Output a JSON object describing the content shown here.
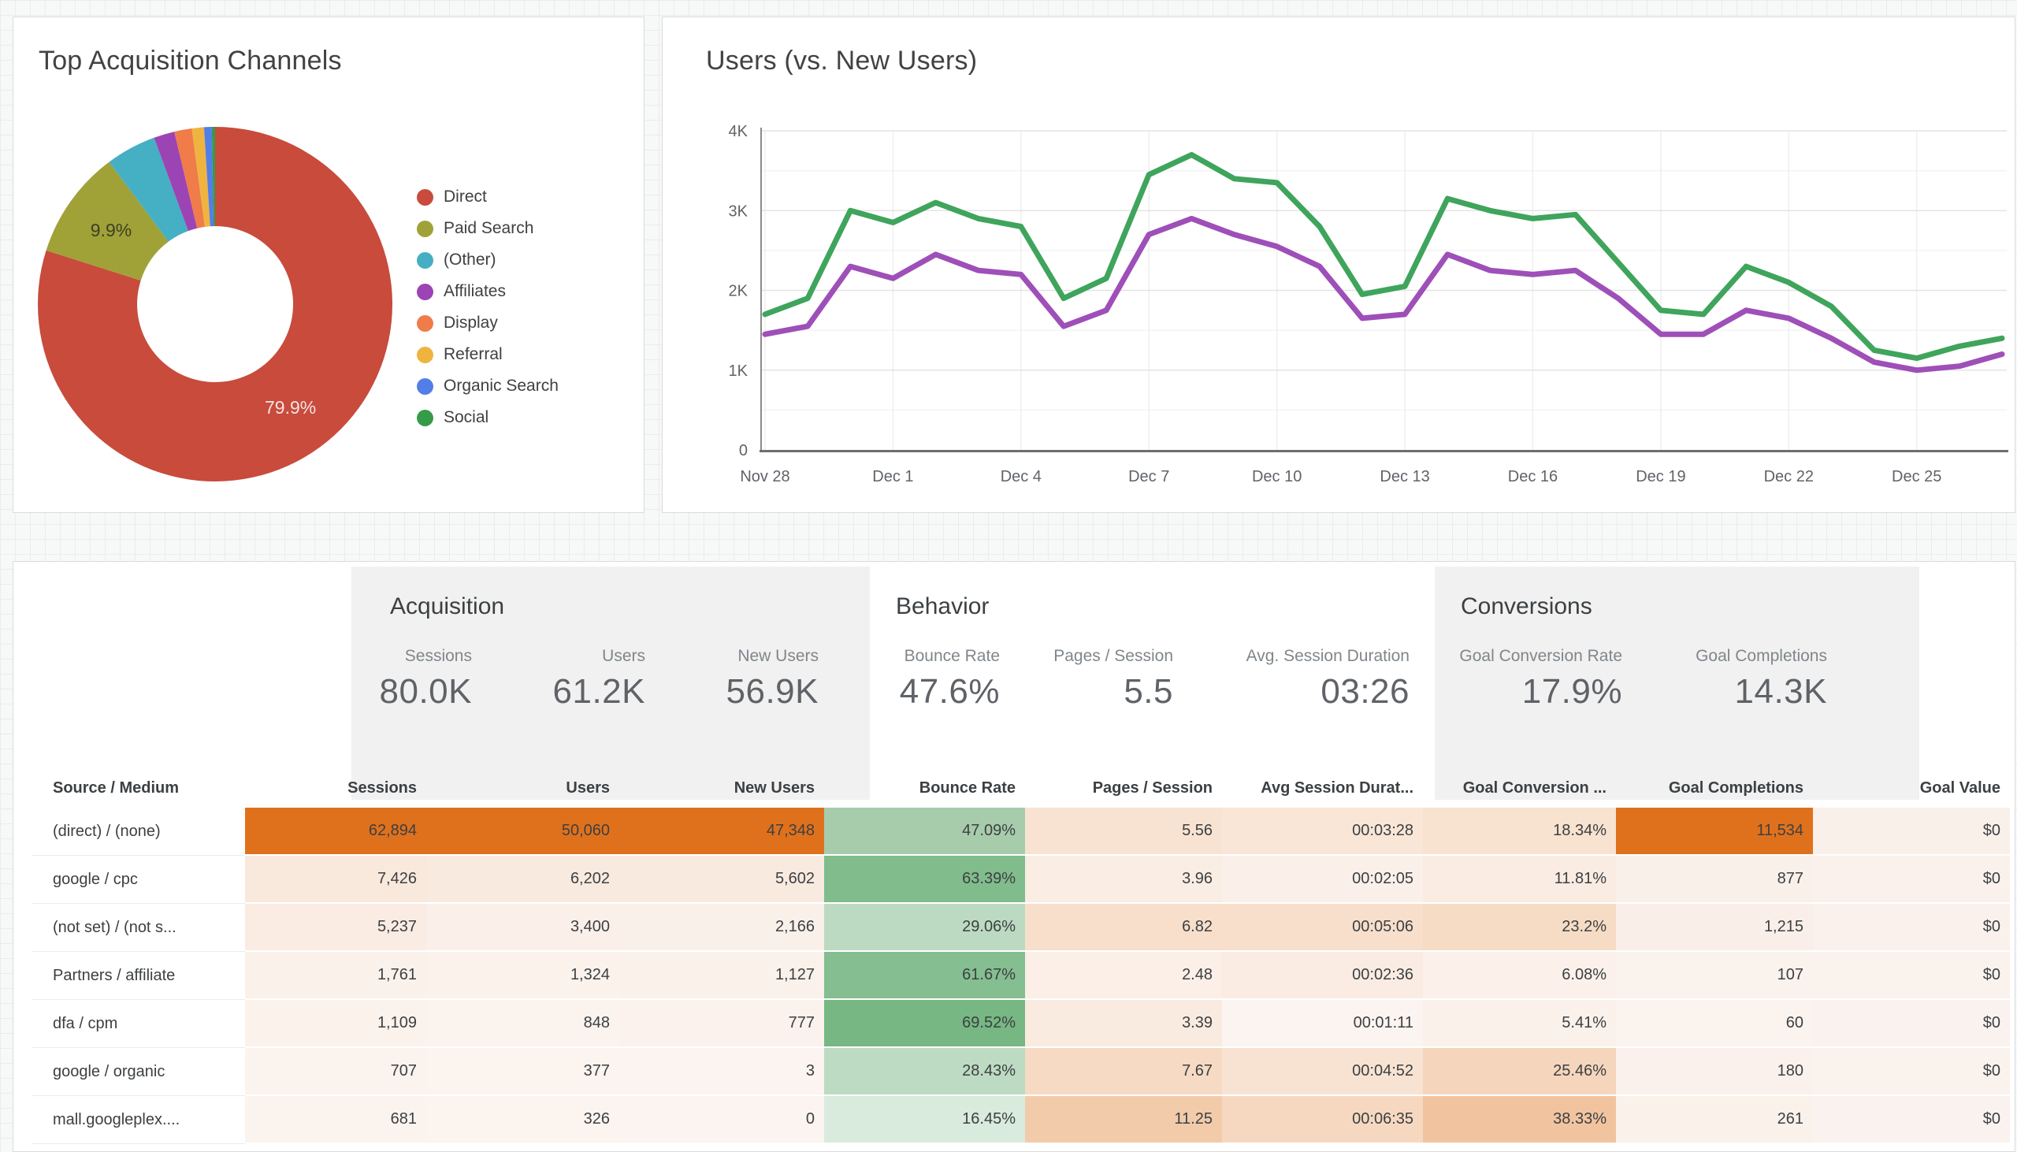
{
  "donut_panel": {
    "title": "Top Acquisition Channels"
  },
  "line_panel": {
    "title": "Users (vs. New Users)"
  },
  "chart_data": [
    {
      "type": "pie",
      "title": "Top Acquisition Channels",
      "donut": true,
      "donut_hole_ratio": 0.44,
      "legend_position": "right",
      "slices": [
        {
          "label": "Direct",
          "value": 79.9,
          "color": "#C84B3C",
          "pct_label": "79.9%",
          "pct_label_color": "#F3E4E2"
        },
        {
          "label": "Paid Search",
          "value": 9.9,
          "color": "#A0A238",
          "pct_label": "9.9%",
          "pct_label_color": "#3E3F24"
        },
        {
          "label": "(Other)",
          "value": 4.6,
          "color": "#45AFC3"
        },
        {
          "label": "Affiliates",
          "value": 1.9,
          "color": "#9D44B5"
        },
        {
          "label": "Display",
          "value": 1.6,
          "color": "#EF7C49"
        },
        {
          "label": "Referral",
          "value": 1.1,
          "color": "#EFB43F"
        },
        {
          "label": "Organic Search",
          "value": 0.7,
          "color": "#527EE8"
        },
        {
          "label": "Social",
          "value": 0.3,
          "color": "#359B49"
        }
      ]
    },
    {
      "type": "line",
      "title": "Users (vs. New Users)",
      "x": [
        "Nov 28",
        "Nov 29",
        "Nov 30",
        "Dec 1",
        "Dec 2",
        "Dec 3",
        "Dec 4",
        "Dec 5",
        "Dec 6",
        "Dec 7",
        "Dec 8",
        "Dec 9",
        "Dec 10",
        "Dec 11",
        "Dec 12",
        "Dec 13",
        "Dec 14",
        "Dec 15",
        "Dec 16",
        "Dec 17",
        "Dec 18",
        "Dec 19",
        "Dec 20",
        "Dec 21",
        "Dec 22",
        "Dec 23",
        "Dec 24",
        "Dec 25",
        "Dec 26",
        "Dec 27"
      ],
      "xtick_indices": [
        0,
        3,
        6,
        9,
        12,
        15,
        18,
        21,
        24,
        27
      ],
      "ylim": [
        0,
        4000
      ],
      "yticks": [
        {
          "v": 0,
          "label": "0"
        },
        {
          "v": 1000,
          "label": "1K"
        },
        {
          "v": 2000,
          "label": "2K"
        },
        {
          "v": 3000,
          "label": "3K"
        },
        {
          "v": 4000,
          "label": "4K"
        }
      ],
      "grid": true,
      "series": [
        {
          "name": "Users",
          "color": "#3FA45C",
          "values": [
            1700,
            1900,
            3000,
            2850,
            3100,
            2900,
            2800,
            1900,
            2150,
            3450,
            3700,
            3400,
            3350,
            2800,
            1950,
            2050,
            3150,
            3000,
            2900,
            2950,
            2350,
            1750,
            1700,
            2300,
            2100,
            1800,
            1250,
            1150,
            1300,
            1400
          ]
        },
        {
          "name": "New Users",
          "color": "#9E4FB8",
          "values": [
            1450,
            1550,
            2300,
            2150,
            2450,
            2250,
            2200,
            1550,
            1750,
            2700,
            2900,
            2700,
            2550,
            2300,
            1650,
            1700,
            2450,
            2250,
            2200,
            2250,
            1900,
            1450,
            1450,
            1750,
            1650,
            1400,
            1100,
            1000,
            1050,
            1200
          ]
        }
      ]
    }
  ],
  "table": {
    "sections": [
      {
        "label": "Acquisition"
      },
      {
        "label": "Behavior"
      },
      {
        "label": "Conversions"
      }
    ],
    "scorecards": [
      {
        "label": "Sessions",
        "value": "80.0K"
      },
      {
        "label": "Users",
        "value": "61.2K"
      },
      {
        "label": "New Users",
        "value": "56.9K"
      },
      {
        "label": "Bounce Rate",
        "value": "47.6%"
      },
      {
        "label": "Pages / Session",
        "value": "5.5"
      },
      {
        "label": "Avg. Session Duration",
        "value": "03:26"
      },
      {
        "label": "Goal Conversion Rate",
        "value": "17.9%"
      },
      {
        "label": "Goal Completions",
        "value": "14.3K"
      }
    ],
    "columns": [
      "Source / Medium",
      "Sessions",
      "Users",
      "New Users",
      "Bounce Rate",
      "Pages / Session",
      "Avg Session Durat...",
      "Goal Conversion ...",
      "Goal Completions",
      "Goal Value"
    ],
    "rows": [
      {
        "cells": [
          "(direct) / (none)",
          "62,894",
          "50,060",
          "47,348",
          "47.09%",
          "5.56",
          "00:03:28",
          "18.34%",
          "11,534",
          "$0"
        ],
        "bg": [
          "",
          "#E0711C",
          "#E0711C",
          "#E0711C",
          "#A7CCAC",
          "#F8E3D2",
          "#F9E6D6",
          "#F8E2D0",
          "#E0711C",
          "#FAF0EA"
        ]
      },
      {
        "cells": [
          "google / cpc",
          "7,426",
          "6,202",
          "5,602",
          "63.39%",
          "3.96",
          "00:02:05",
          "11.81%",
          "877",
          "$0"
        ],
        "bg": [
          "",
          "#F9E8DC",
          "#F9EAE0",
          "#F9EAE0",
          "#81BC8C",
          "#FAEDE3",
          "#FBF0E9",
          "#FAECE2",
          "#F9F0EA",
          "#FAF1EC"
        ]
      },
      {
        "cells": [
          "(not set) / (not s...",
          "5,237",
          "3,400",
          "2,166",
          "29.06%",
          "6.82",
          "00:05:06",
          "23.2%",
          "1,215",
          "$0"
        ],
        "bg": [
          "",
          "#FAECE3",
          "#FAF0E9",
          "#FAF0EA",
          "#BCDAC1",
          "#F7DFCB",
          "#F7DFCC",
          "#F6DCC5",
          "#F9EFE8",
          "#FAF1EC"
        ]
      },
      {
        "cells": [
          "Partners / affiliate",
          "1,761",
          "1,324",
          "1,127",
          "61.67%",
          "2.48",
          "00:02:36",
          "6.08%",
          "107",
          "$0"
        ],
        "bg": [
          "",
          "#FBF1EB",
          "#FBF2EC",
          "#FAF1EB",
          "#85BE90",
          "#FBEFE7",
          "#FAECE2",
          "#FBF1EA",
          "#FAF2ED",
          "#FAF2ED"
        ]
      },
      {
        "cells": [
          "dfa / cpm",
          "1,109",
          "848",
          "777",
          "69.52%",
          "3.39",
          "00:01:11",
          "5.41%",
          "60",
          "$0"
        ],
        "bg": [
          "",
          "#FBF2EC",
          "#FBF3EE",
          "#FBF2ED",
          "#77B783",
          "#FAEBE1",
          "#FCF4F0",
          "#FBF1EB",
          "#FAF3EE",
          "#FAF2EE"
        ]
      },
      {
        "cells": [
          "google / organic",
          "707",
          "377",
          "3",
          "28.43%",
          "7.67",
          "00:04:52",
          "25.46%",
          "180",
          "$0"
        ],
        "bg": [
          "",
          "#FBF3EE",
          "#FBF4EF",
          "#FBF4F0",
          "#BDDBC2",
          "#F6DAC3",
          "#F8E3D2",
          "#F5D6BC",
          "#FAF1EC",
          "#FAF2ED"
        ]
      },
      {
        "cells": [
          "mall.googleplex....",
          "681",
          "326",
          "0",
          "16.45%",
          "11.25",
          "00:06:35",
          "38.33%",
          "261",
          "$0"
        ],
        "bg": [
          "",
          "#FBF3EE",
          "#FBF4EF",
          "#FBF4F0",
          "#D9EBDC",
          "#F2CBAB",
          "#F6D8C0",
          "#F1C49F",
          "#FAF1EB",
          "#FAF2EE"
        ]
      }
    ]
  }
}
